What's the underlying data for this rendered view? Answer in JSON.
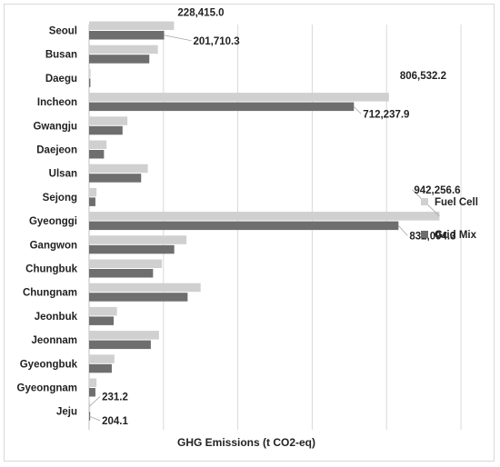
{
  "chart_data": {
    "type": "bar",
    "orientation": "horizontal",
    "xlabel": "GHG Emissions (t CO2-eq)",
    "xlim": [
      0,
      1000000
    ],
    "grid": true,
    "legend_position": "right",
    "categories": [
      "Seoul",
      "Busan",
      "Daegu",
      "Incheon",
      "Gwangju",
      "Daejeon",
      "Ulsan",
      "Sejong",
      "Gyeonggi",
      "Gangwon",
      "Chungbuk",
      "Chungnam",
      "Jeonbuk",
      "Jeonnam",
      "Gyeongbuk",
      "Gyeongnam",
      "Jeju"
    ],
    "series": [
      {
        "name": "Fuel Cell",
        "color": "#d0d0d0",
        "values": [
          228415.0,
          185000,
          4000,
          806532.2,
          103000,
          47000,
          158000,
          20000,
          942256.6,
          262000,
          196000,
          300000,
          75000,
          188000,
          68000,
          20000,
          231.2
        ]
      },
      {
        "name": "Grid Mix",
        "color": "#6e6e6e",
        "values": [
          201710.3,
          162000,
          3500,
          712237.9,
          90000,
          40000,
          140000,
          17000,
          832094.3,
          229000,
          172000,
          265000,
          66000,
          166000,
          61000,
          17000,
          204.1
        ]
      }
    ],
    "data_labels": [
      {
        "category": "Seoul",
        "series": "Fuel Cell",
        "text": "228,415.0"
      },
      {
        "category": "Seoul",
        "series": "Grid Mix",
        "text": "201,710.3"
      },
      {
        "category": "Incheon",
        "series": "Fuel Cell",
        "text": "806,532.2"
      },
      {
        "category": "Incheon",
        "series": "Grid Mix",
        "text": "712,237.9"
      },
      {
        "category": "Gyeonggi",
        "series": "Fuel Cell",
        "text": "942,256.6"
      },
      {
        "category": "Gyeonggi",
        "series": "Grid Mix",
        "text": "832,094.3"
      },
      {
        "category": "Jeju",
        "series": "Fuel Cell",
        "text": "231.2"
      },
      {
        "category": "Jeju",
        "series": "Grid Mix",
        "text": "204.1"
      }
    ]
  }
}
